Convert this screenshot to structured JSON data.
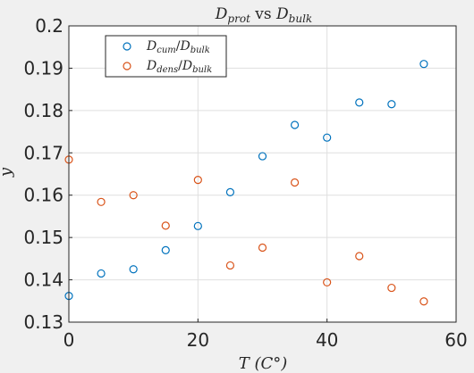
{
  "chart_data": {
    "type": "scatter",
    "title": {
      "base": "D",
      "sub": "prot",
      "mid": " vs ",
      "base2": "D",
      "sub2": "bulk"
    },
    "xlabel": "T (C°)",
    "ylabel": "y",
    "xlim": [
      0,
      60
    ],
    "ylim": [
      0.13,
      0.2
    ],
    "xticks": [
      "0",
      "20",
      "40",
      "60"
    ],
    "yticks": [
      "0.13",
      "0.14",
      "0.15",
      "0.16",
      "0.17",
      "0.18",
      "0.19",
      "0.2"
    ],
    "grid": true,
    "legend_placement": "top-left",
    "series": [
      {
        "name": "D_cum/D_bulk",
        "legend": {
          "base": "D",
          "sub": "cum",
          "mid": "/",
          "base2": "D",
          "sub2": "bulk"
        },
        "color": "#0072bd",
        "x": [
          0,
          5,
          10,
          15,
          20,
          25,
          30,
          35,
          40,
          45,
          50,
          55
        ],
        "y": [
          0.1362,
          0.1415,
          0.1425,
          0.147,
          0.1527,
          0.1607,
          0.1692,
          0.1766,
          0.1736,
          0.1819,
          0.1815,
          0.191
        ]
      },
      {
        "name": "D_dens/D_bulk",
        "legend": {
          "base": "D",
          "sub": "dens",
          "mid": "/",
          "base2": "D",
          "sub2": "bulk"
        },
        "color": "#d95319",
        "x": [
          0,
          5,
          10,
          15,
          20,
          25,
          30,
          35,
          40,
          45,
          50,
          55
        ],
        "y": [
          0.1684,
          0.1584,
          0.16,
          0.1528,
          0.1636,
          0.1434,
          0.1476,
          0.163,
          0.1394,
          0.1456,
          0.1381,
          0.1349
        ]
      }
    ]
  }
}
